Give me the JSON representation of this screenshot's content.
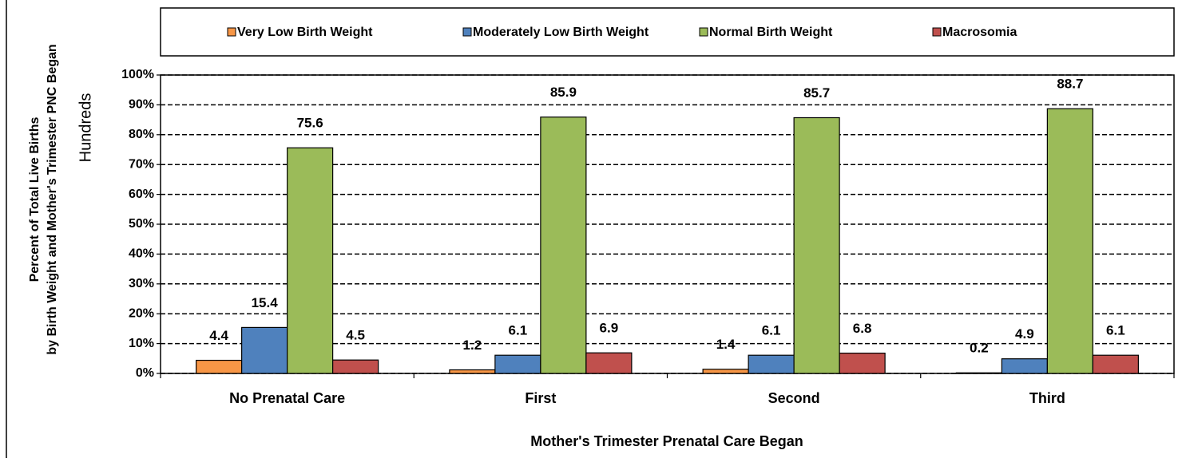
{
  "chart_data": {
    "type": "bar",
    "y_axis_label": [
      "Percent of Total Live Births",
      "by Birth Weight and Mother's Trimester PNC Began"
    ],
    "display_units_label": "Hundreds",
    "x_axis_label": "Mother's Trimester Prenatal Care Began",
    "categories": [
      "No Prenatal Care",
      "First",
      "Second",
      "Third"
    ],
    "series": [
      {
        "name": "Very Low Birth Weight",
        "color": "#f79646",
        "values": [
          4.4,
          1.2,
          1.4,
          0.2
        ]
      },
      {
        "name": "Moderately Low Birth Weight",
        "color": "#4f81bd",
        "values": [
          15.4,
          6.1,
          6.1,
          4.9
        ]
      },
      {
        "name": "Normal Birth Weight",
        "color": "#9bbb59",
        "values": [
          75.6,
          85.9,
          85.7,
          88.7
        ]
      },
      {
        "name": "Macrosomia",
        "color": "#c0504d",
        "values": [
          4.5,
          6.9,
          6.8,
          6.1
        ]
      }
    ],
    "ylim": [
      0,
      100
    ],
    "yticks": [
      {
        "value": 0,
        "label": "0%"
      },
      {
        "value": 10,
        "label": "10%"
      },
      {
        "value": 20,
        "label": "20%"
      },
      {
        "value": 30,
        "label": "30%"
      },
      {
        "value": 40,
        "label": "40%"
      },
      {
        "value": 50,
        "label": "50%"
      },
      {
        "value": 60,
        "label": "60%"
      },
      {
        "value": 70,
        "label": "70%"
      },
      {
        "value": 80,
        "label": "80%"
      },
      {
        "value": 90,
        "label": "90%"
      },
      {
        "value": 100,
        "label": "100%"
      }
    ],
    "grid": true,
    "legend": "top"
  }
}
